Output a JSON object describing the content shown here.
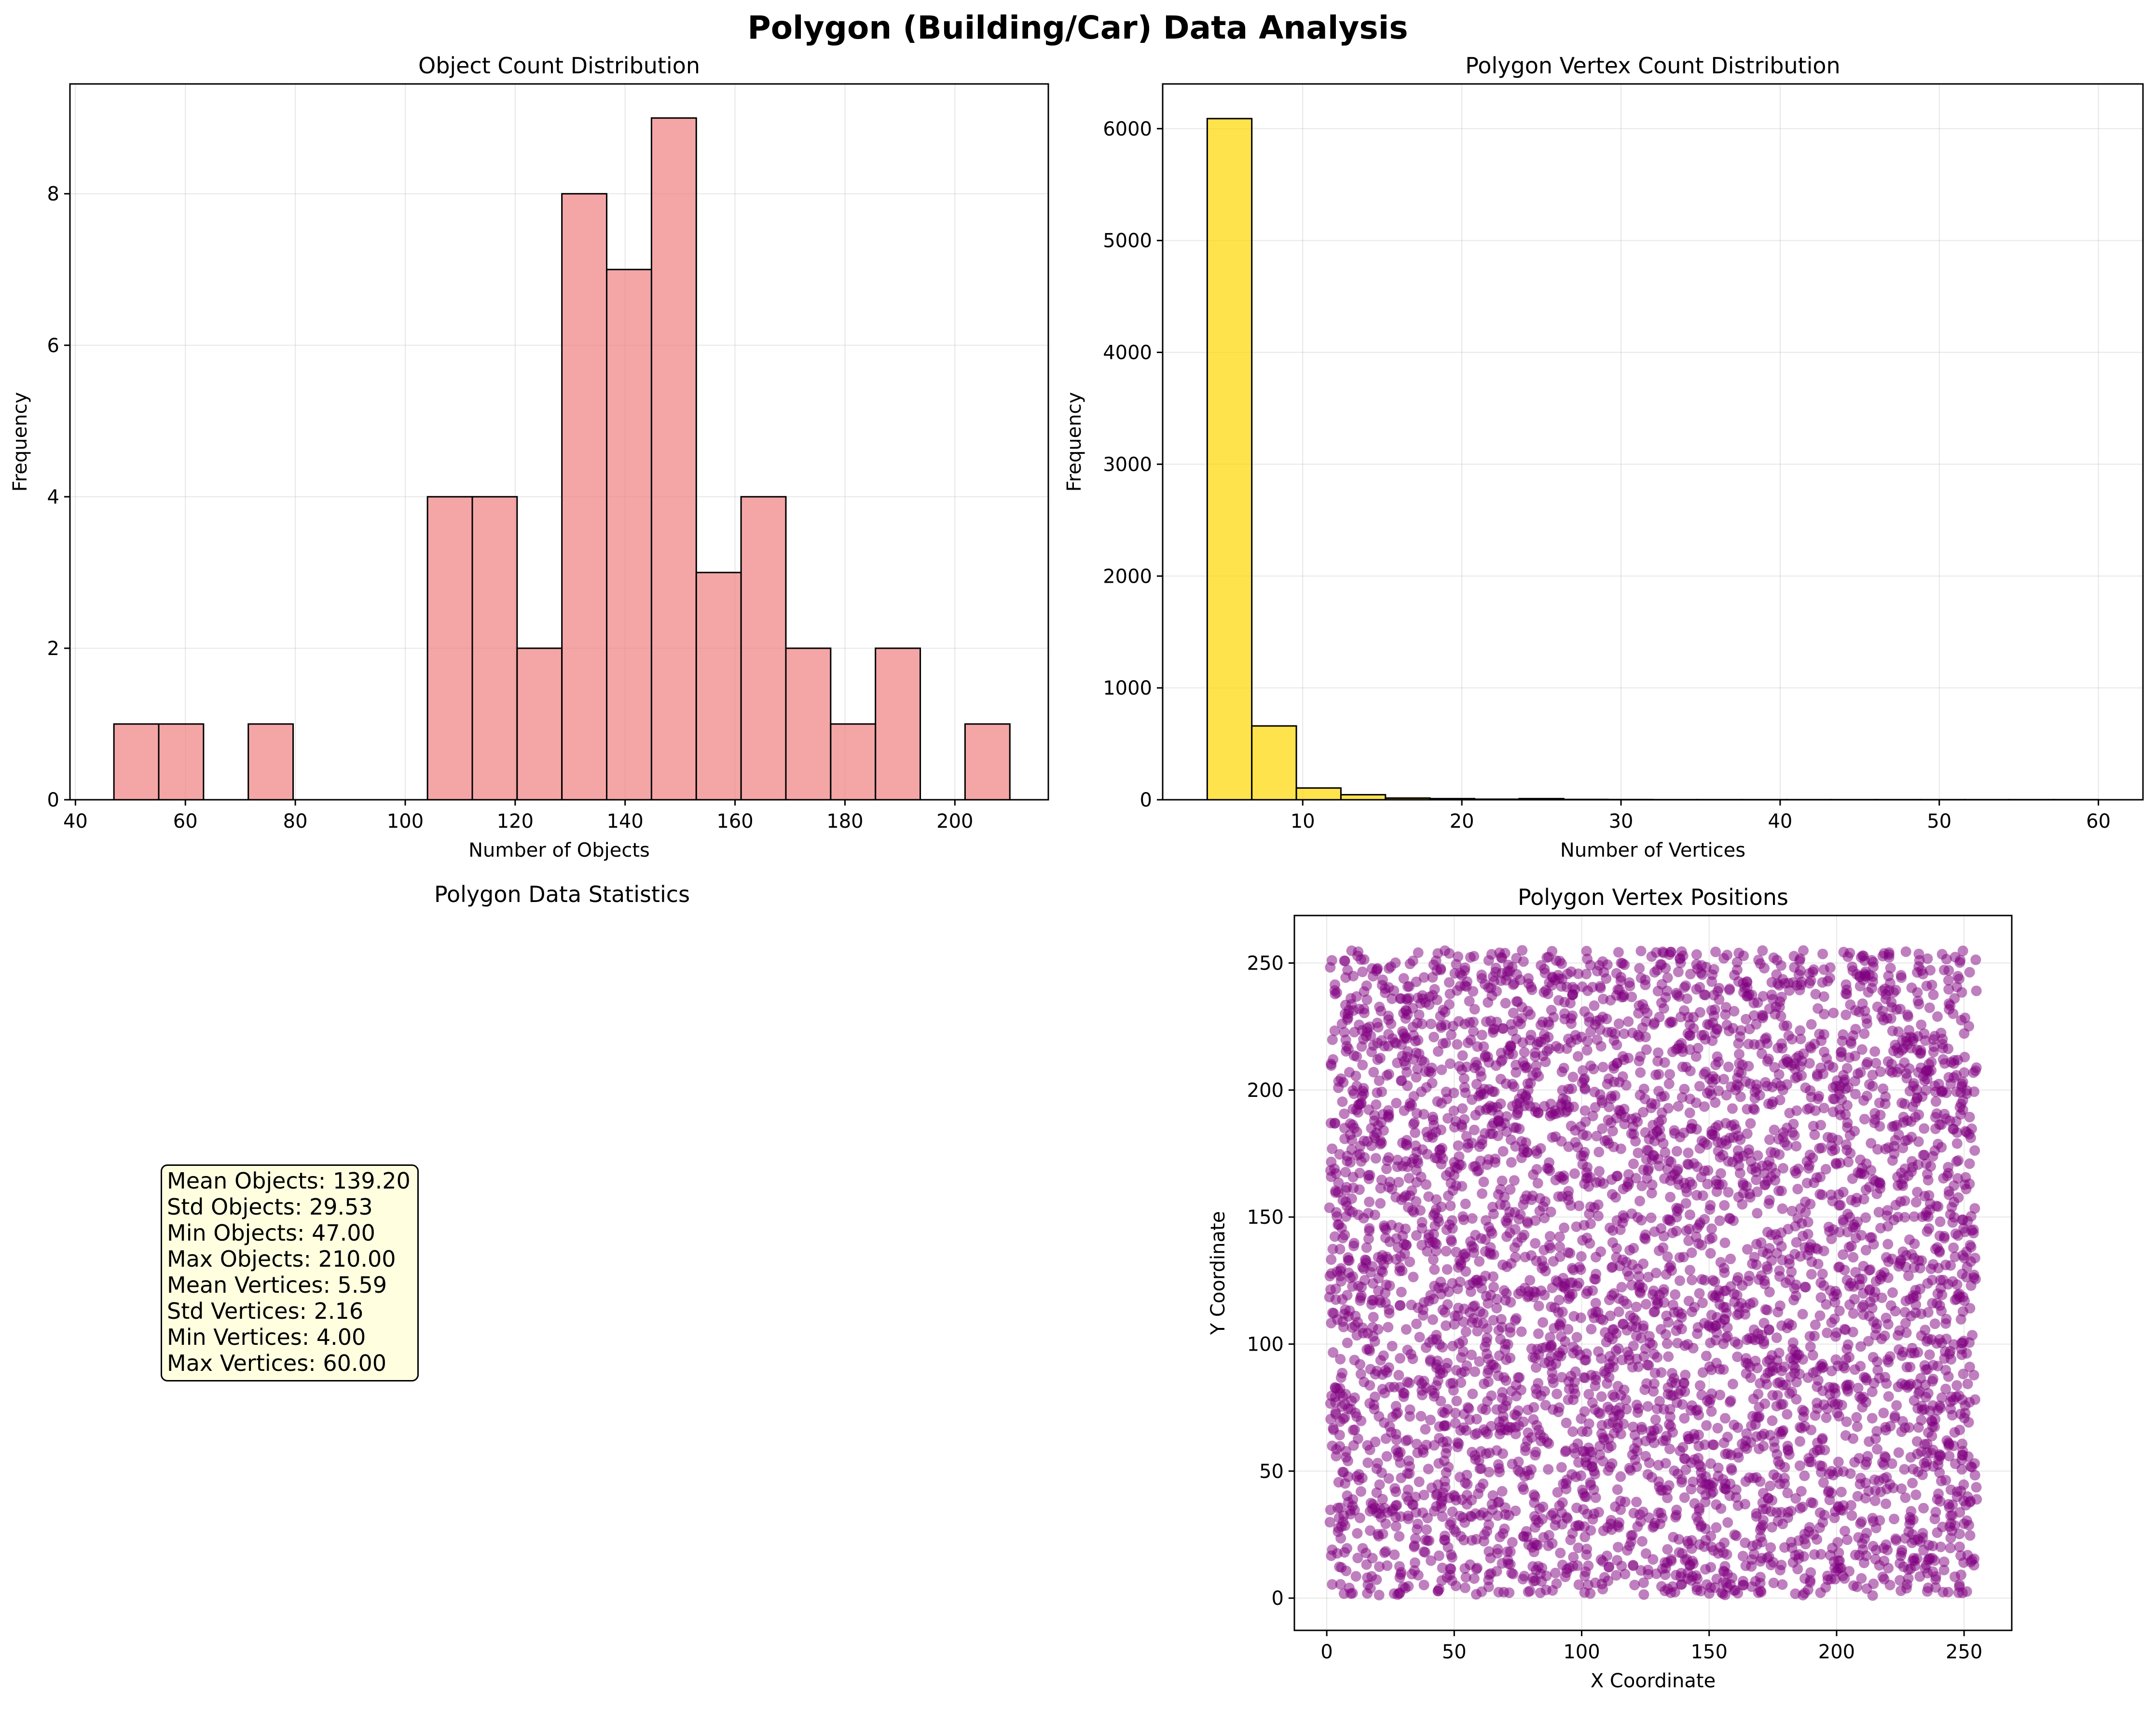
{
  "figure_title": "Polygon (Building/Car) Data Analysis",
  "colors": {
    "hist1_fill": "#f08080",
    "hist2_fill": "#ffd700",
    "scatter": "#800080",
    "stats_bg": "#ffffe0"
  },
  "chart_data": [
    {
      "type": "bar",
      "kind": "histogram",
      "title": "Object Count Distribution",
      "xlabel": "Number of Objects",
      "ylabel": "Frequency",
      "xlim": [
        39,
        217
      ],
      "ylim": [
        0,
        9.45
      ],
      "xticks": [
        40,
        60,
        80,
        100,
        120,
        140,
        160,
        180,
        200
      ],
      "yticks": [
        0,
        2,
        4,
        6,
        8
      ],
      "bin_edges": [
        47,
        55.15,
        63.3,
        71.45,
        79.6,
        87.75,
        95.9,
        104.05,
        112.2,
        120.35,
        128.5,
        136.65,
        144.8,
        152.95,
        161.1,
        169.25,
        177.4,
        185.55,
        193.7,
        201.85,
        210
      ],
      "values": [
        1,
        1,
        0,
        1,
        0,
        0,
        0,
        4,
        4,
        2,
        8,
        7,
        9,
        3,
        4,
        2,
        1,
        2,
        0,
        1
      ],
      "grid": true
    },
    {
      "type": "bar",
      "kind": "histogram",
      "title": "Polygon Vertex Count Distribution",
      "xlabel": "Number of Vertices",
      "ylabel": "Frequency",
      "xlim": [
        1.2,
        62.8
      ],
      "ylim": [
        0,
        6400
      ],
      "xticks": [
        10,
        20,
        30,
        40,
        50,
        60
      ],
      "yticks": [
        0,
        1000,
        2000,
        3000,
        4000,
        5000,
        6000
      ],
      "bin_edges": [
        4,
        6.8,
        9.6,
        12.4,
        15.2,
        18,
        20.8,
        23.6,
        26.4,
        29.2,
        32,
        34.8,
        37.6,
        40.4,
        43.2,
        46,
        48.8,
        51.6,
        54.4,
        57.2,
        60
      ],
      "values": [
        6090,
        660,
        105,
        45,
        15,
        10,
        5,
        10,
        3,
        2,
        1,
        1,
        1,
        1,
        1,
        1,
        1,
        1,
        1,
        1
      ],
      "grid": true
    },
    {
      "type": "scatter",
      "title": "Polygon Vertex Positions",
      "xlabel": "X Coordinate",
      "ylabel": "Y Coordinate",
      "xlim": [
        -12.7,
        268.7
      ],
      "ylim": [
        -12.7,
        268.7
      ],
      "xticks": [
        0,
        50,
        100,
        150,
        200,
        250
      ],
      "yticks": [
        0,
        50,
        100,
        150,
        200,
        250
      ],
      "point_extent": [
        1,
        255
      ],
      "alpha": 0.5,
      "grid": true
    }
  ],
  "stats_panel": {
    "title": "Polygon Data Statistics",
    "lines": [
      "Mean Objects: 139.20",
      "Std Objects: 29.53",
      "Min Objects: 47.00",
      "Max Objects: 210.00",
      "Mean Vertices: 5.59",
      "Std Vertices: 2.16",
      "Min Vertices: 4.00",
      "Max Vertices: 60.00"
    ]
  }
}
